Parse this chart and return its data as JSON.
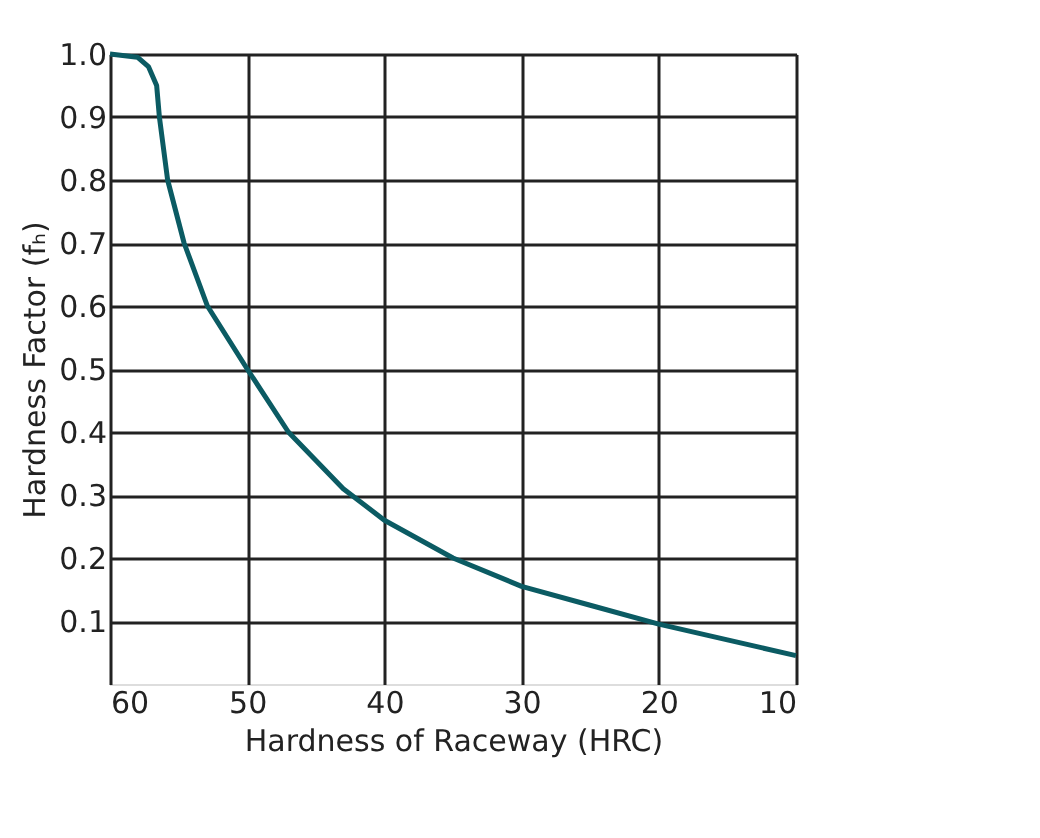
{
  "chart_data": {
    "type": "line",
    "xlabel": "Hardness of Raceway (HRC)",
    "ylabel": "Hardness Factor (fₕ)",
    "x": [
      60,
      58,
      57.2,
      56.6,
      56.4,
      55.8,
      54.6,
      52.9,
      50,
      47,
      43,
      40,
      35,
      30,
      25,
      20,
      15,
      10
    ],
    "series": [
      {
        "color": "#0b5b63",
        "values": [
          1.0,
          0.995,
          0.98,
          0.95,
          0.9,
          0.8,
          0.7,
          0.6,
          0.5,
          0.4,
          0.31,
          0.26,
          0.2,
          0.155,
          0.125,
          0.095,
          0.07,
          0.045
        ]
      }
    ],
    "xlim": [
      60,
      10
    ],
    "xticks": [
      60,
      50,
      40,
      30,
      20,
      10
    ],
    "ylim": [
      0,
      1
    ],
    "yticks": [
      0.1,
      0.2,
      0.3,
      0.4,
      0.5,
      0.6,
      0.7,
      0.8,
      0.9,
      {
        "value": 1,
        "label": "1.0"
      }
    ],
    "grid": true,
    "marker": "none",
    "line_style": "solid"
  }
}
